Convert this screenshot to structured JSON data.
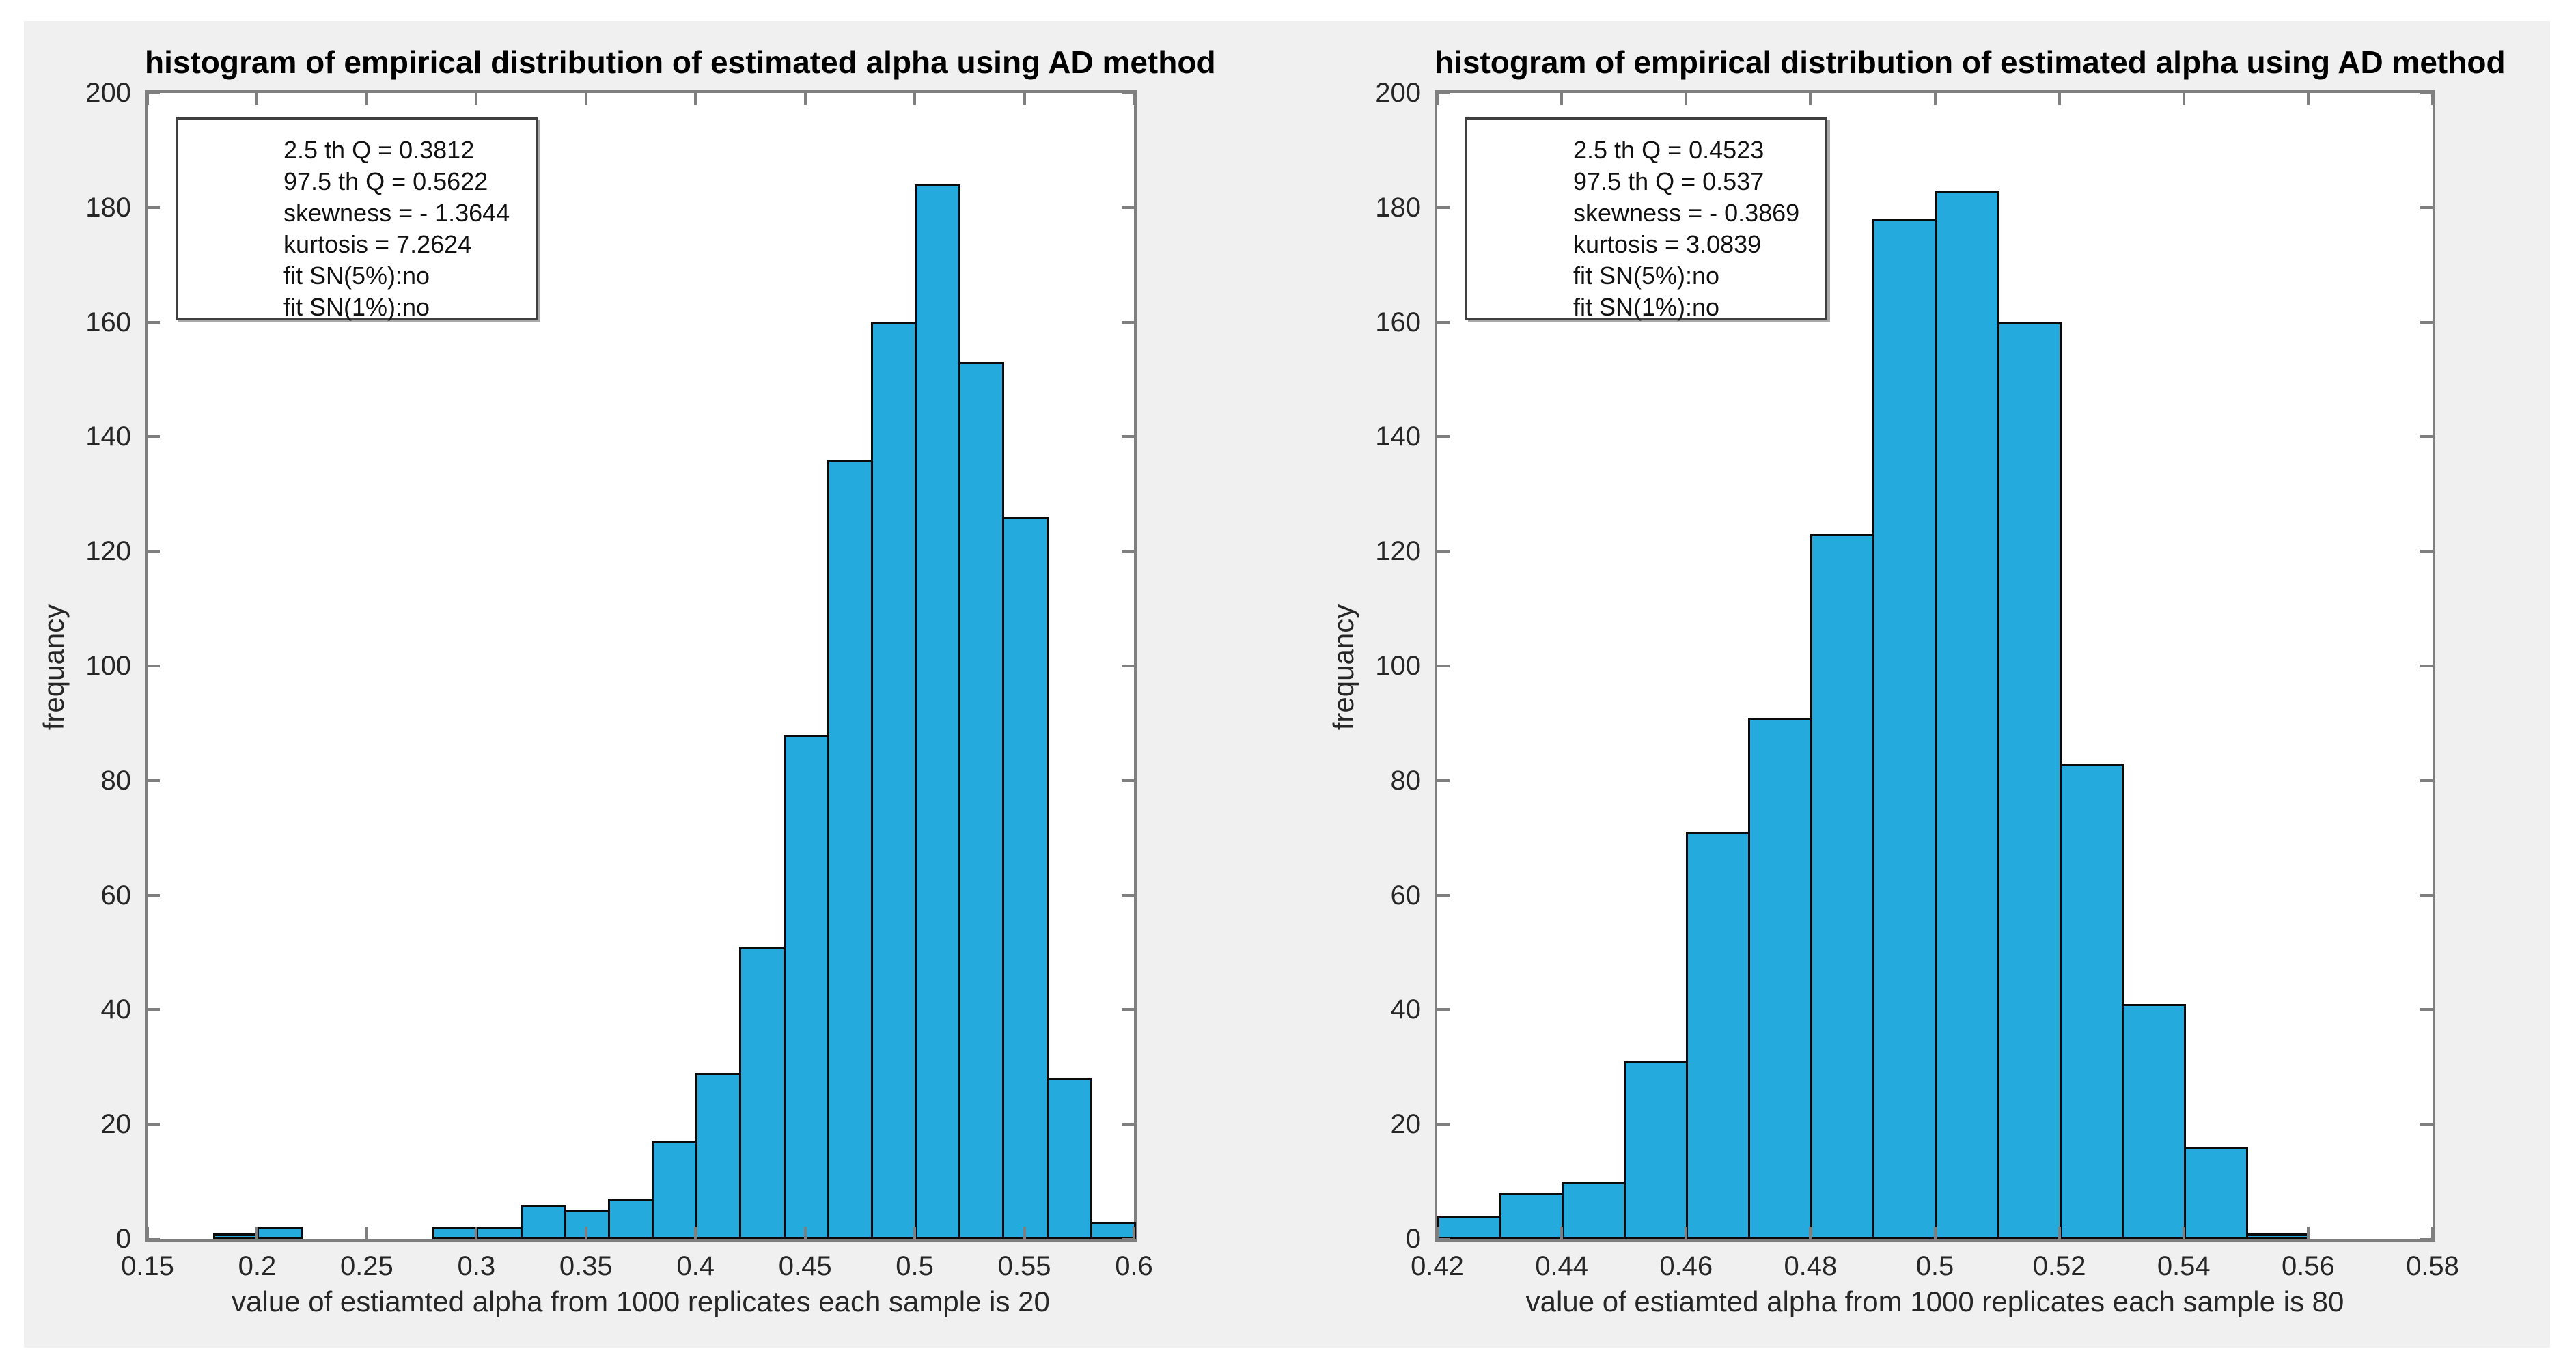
{
  "figure": {
    "background_color": "#F0F0F0",
    "outer_background": "#FFFFFF"
  },
  "style": {
    "bar_fill": "#24AADD",
    "bar_edge": "#0A0A0A",
    "axis_color": "#7F7F7F",
    "tick_text_color": "#262626",
    "title_color": "#000000",
    "plot_background": "#FFFFFF"
  },
  "chart_data": [
    {
      "type": "bar",
      "title": "histogram of empirical distribution of estimated alpha using AD method",
      "xlabel": "value of estiamted alpha from 1000 replicates each sample is 20",
      "ylabel": "frequancy",
      "grid": false,
      "xlim": [
        0.15,
        0.6
      ],
      "ylim": [
        0,
        200
      ],
      "x_tick_values": [
        0.15,
        0.2,
        0.25,
        0.3,
        0.35,
        0.4,
        0.45,
        0.5,
        0.55,
        0.6
      ],
      "x_tick_labels": [
        "0.15",
        "0.2",
        "0.25",
        "0.3",
        "0.35",
        "0.4",
        "0.45",
        "0.5",
        "0.55",
        "0.6"
      ],
      "y_tick_values": [
        0,
        20,
        40,
        60,
        80,
        100,
        120,
        140,
        160,
        180,
        200
      ],
      "bin_start": 0.18,
      "bin_width": 0.02,
      "counts": [
        1,
        2,
        0,
        0,
        0,
        2,
        2,
        6,
        5,
        7,
        17,
        29,
        51,
        88,
        136,
        160,
        184,
        153,
        126,
        28,
        3
      ],
      "annotation_lines": [
        "2.5 th Q = 0.3812",
        "97.5 th Q = 0.5622",
        "skewness = - 1.3644",
        "kurtosis = 7.2624",
        "fit SN(5%):no",
        "fit SN(1%):no"
      ]
    },
    {
      "type": "bar",
      "title": "histogram of empirical distribution of estimated alpha using AD method",
      "xlabel": "value of estiamted alpha from 1000 replicates each sample is 80",
      "ylabel": "frequancy",
      "grid": false,
      "xlim": [
        0.42,
        0.58
      ],
      "ylim": [
        0,
        200
      ],
      "x_tick_values": [
        0.42,
        0.44,
        0.46,
        0.48,
        0.5,
        0.52,
        0.54,
        0.56,
        0.58
      ],
      "x_tick_labels": [
        "0.42",
        "0.44",
        "0.46",
        "0.48",
        "0.5",
        "0.52",
        "0.54",
        "0.56",
        "0.58"
      ],
      "y_tick_values": [
        0,
        20,
        40,
        60,
        80,
        100,
        120,
        140,
        160,
        180,
        200
      ],
      "bin_start": 0.42,
      "bin_width": 0.01,
      "counts": [
        4,
        8,
        10,
        31,
        71,
        91,
        123,
        178,
        183,
        160,
        83,
        41,
        16,
        1
      ],
      "annotation_lines": [
        "2.5 th Q = 0.4523",
        "97.5 th Q = 0.537",
        "skewness = - 0.3869",
        "kurtosis = 3.0839",
        "fit SN(5%):no",
        "fit SN(1%):no"
      ]
    }
  ]
}
